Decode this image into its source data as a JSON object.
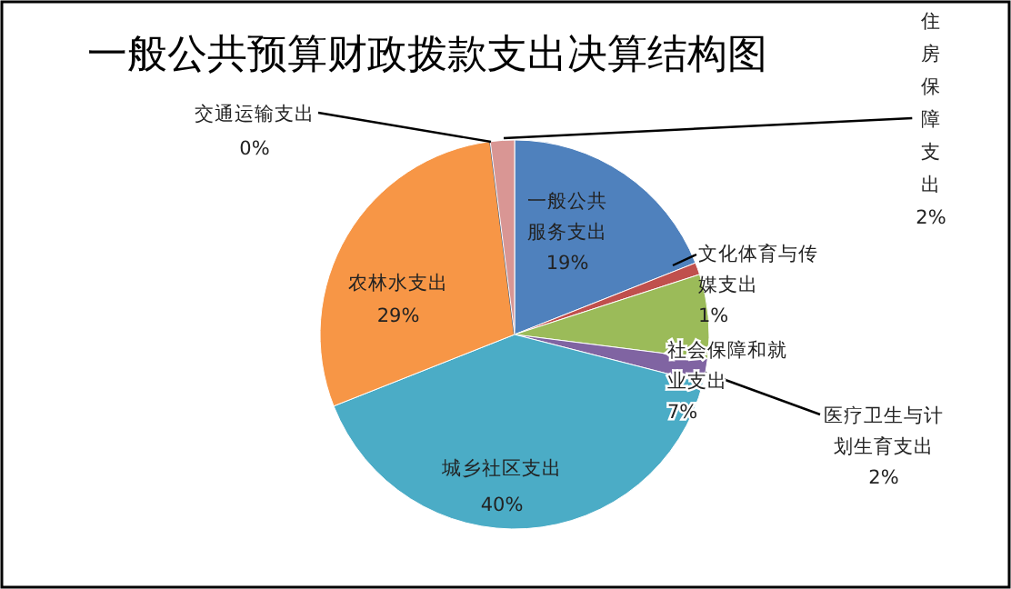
{
  "chart_data": {
    "type": "pie",
    "title": "一般公共预算财政拨款支出决算结构图",
    "categories": [
      "一般公共服务支出",
      "文化体育与传媒支出",
      "社会保障和就业支出",
      "医疗卫生与计划生育支出",
      "城乡社区支出",
      "农林水支出",
      "交通运输支出",
      "住房保障支出"
    ],
    "values": [
      19,
      1,
      7,
      2,
      40,
      29,
      0,
      2
    ],
    "colors": [
      "#4f81bd",
      "#c0504d",
      "#9bbb59",
      "#8064a2",
      "#4bacc6",
      "#f79646",
      "#2c4d75",
      "#d99694"
    ],
    "data_labels": true,
    "value_labels": [
      "19%",
      "1%",
      "7%",
      "2%",
      "40%",
      "29%",
      "0%",
      "2%"
    ]
  }
}
